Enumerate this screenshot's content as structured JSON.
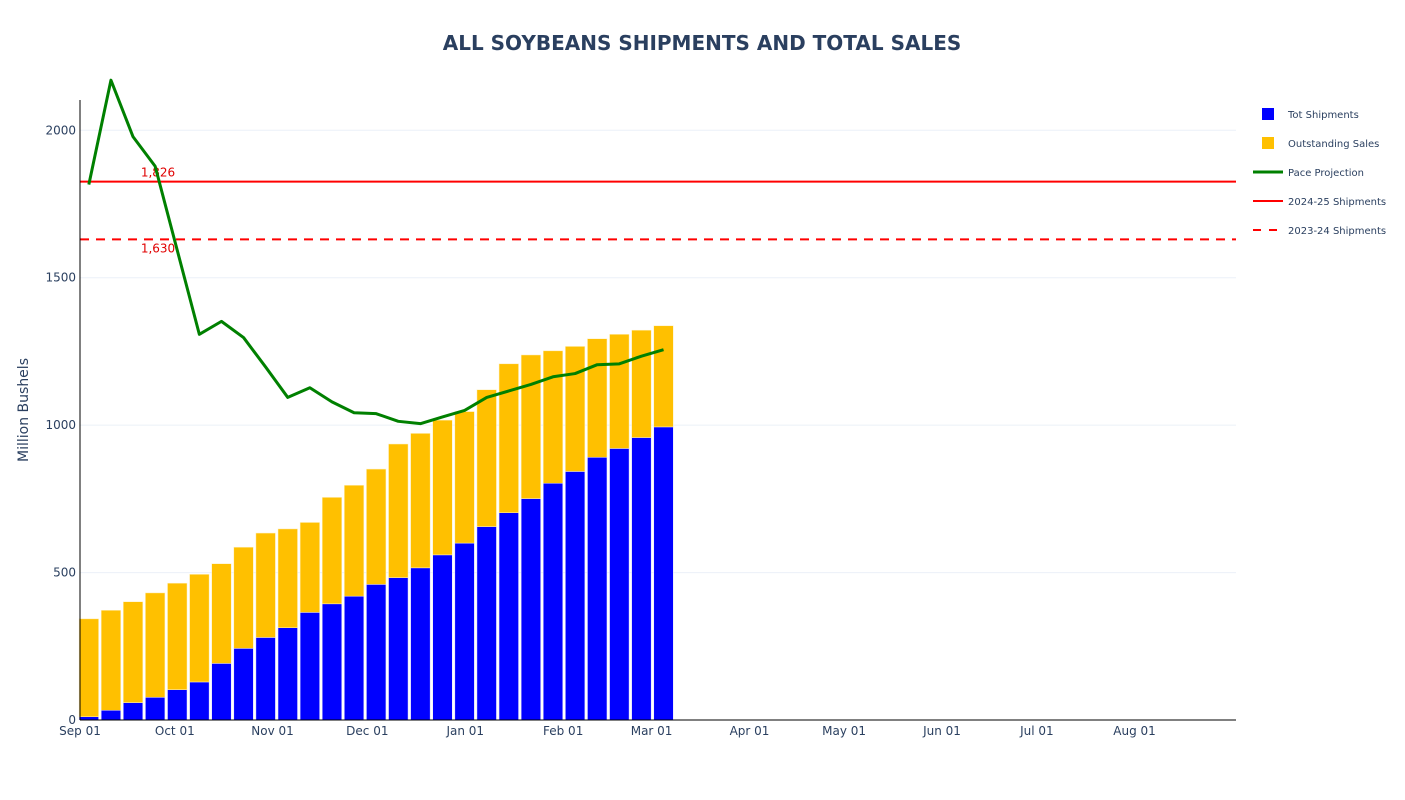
{
  "chart_data": {
    "type": "bar",
    "title": "ALL SOYBEANS SHIPMENTS AND TOTAL SALES",
    "xlabel": "",
    "ylabel": "Million Bushels",
    "ylim": [
      0,
      2280
    ],
    "yticks": [
      0,
      500,
      1000,
      1500,
      2000
    ],
    "ytick_labels": [
      "0",
      "500",
      "1000",
      "1500",
      "2000"
    ],
    "xticks": [
      "Sep 01",
      "Oct 01",
      "Nov 01",
      "Dec 01",
      "Jan 01",
      "Feb 01",
      "Mar 01",
      "Apr 01",
      "May 01",
      "Jun 01",
      "Jul 01",
      "Aug 01"
    ],
    "xrange_weeks": [
      0,
      52.3
    ],
    "xtick_weeks": [
      0,
      4.29,
      8.71,
      13.0,
      17.43,
      21.86,
      25.86,
      30.29,
      34.57,
      39.0,
      43.29,
      47.71
    ],
    "grid": true,
    "legend_position": "top-right",
    "bar_week_offsets": [
      0.4,
      1.4,
      2.4,
      3.4,
      4.4,
      5.4,
      6.4,
      7.4,
      8.4,
      9.4,
      10.4,
      11.4,
      12.4,
      13.4,
      14.4,
      15.4,
      16.4,
      17.4,
      18.4,
      19.4,
      20.4,
      21.4,
      22.4,
      23.4,
      24.4,
      25.4,
      26.4
    ],
    "series": [
      {
        "name": "Tot Shipments",
        "kind": "bar",
        "color": "#0000ff",
        "values": [
          11,
          33,
          59,
          77,
          103,
          129,
          192,
          243,
          280,
          313,
          365,
          394,
          420,
          460,
          483,
          516,
          560,
          600,
          656,
          703,
          751,
          803,
          843,
          891,
          921,
          958,
          994
        ]
      },
      {
        "name": "Outstanding Sales",
        "kind": "bar",
        "stacked": true,
        "color": "#ffc000",
        "values": [
          332,
          339,
          342,
          354,
          361,
          365,
          338,
          343,
          354,
          335,
          305,
          361,
          376,
          391,
          453,
          456,
          457,
          446,
          464,
          505,
          487,
          449,
          424,
          402,
          387,
          364,
          343
        ]
      },
      {
        "name": "Pace Projection",
        "kind": "line",
        "color": "#008000",
        "week_offsets": [
          0.4,
          1.4,
          2.4,
          3.4,
          5.4,
          6.4,
          7.4,
          8.4,
          9.4,
          10.4,
          11.4,
          12.4,
          13.4,
          14.4,
          15.4,
          16.4,
          17.4,
          18.4,
          19.4,
          20.4,
          21.4,
          22.4,
          23.4,
          24.4,
          25.4,
          26.4
        ],
        "values": [
          1816,
          2170,
          1978,
          1878,
          1308,
          1352,
          1297,
          1197,
          1094,
          1127,
          1079,
          1042,
          1039,
          1013,
          1005,
          1028,
          1050,
          1094,
          1116,
          1138,
          1164,
          1175,
          1205,
          1208,
          1234,
          1256
        ]
      },
      {
        "name": "2024-25 Shipments",
        "kind": "hline",
        "color": "#ff0000",
        "dash": false,
        "value": 1826,
        "annotation": "1,826"
      },
      {
        "name": "2023-24 Shipments",
        "kind": "hline",
        "color": "#ff0000",
        "dash": true,
        "value": 1630,
        "annotation": "1,630"
      }
    ]
  }
}
